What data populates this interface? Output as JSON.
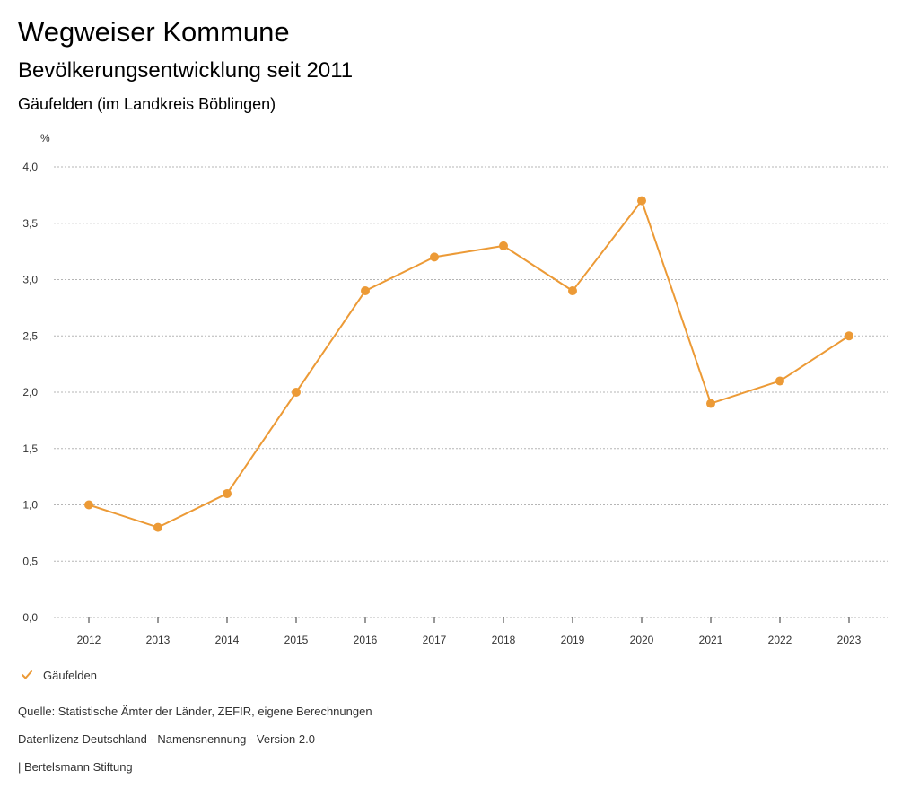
{
  "header": {
    "title": "Wegweiser Kommune",
    "subtitle": "Bevölkerungsentwicklung seit 2011",
    "region": "Gäufelden (im Landkreis Böblingen)"
  },
  "chart_data": {
    "type": "line",
    "title": "Bevölkerungsentwicklung seit 2011",
    "ylabel": "%",
    "xlabel": "",
    "ylim": [
      0,
      4
    ],
    "y_ticks": [
      "0,0",
      "0,5",
      "1,0",
      "1,5",
      "2,0",
      "2,5",
      "3,0",
      "3,5",
      "4,0"
    ],
    "categories": [
      "2012",
      "2013",
      "2014",
      "2015",
      "2016",
      "2017",
      "2018",
      "2019",
      "2020",
      "2021",
      "2022",
      "2023"
    ],
    "series": [
      {
        "name": "Gäufelden",
        "color": "#ec9a36",
        "values": [
          1.0,
          0.8,
          1.1,
          2.0,
          2.9,
          3.2,
          3.3,
          2.9,
          3.7,
          1.9,
          2.1,
          2.5
        ]
      }
    ],
    "grid": true,
    "legend": "bottom-left"
  },
  "legend": {
    "label": "Gäufelden",
    "icon": "check-icon"
  },
  "footer": {
    "source": "Quelle: Statistische Ämter der Länder, ZEFIR, eigene Berechnungen",
    "license": "Datenlizenz Deutschland - Namensnennung - Version 2.0",
    "publisher": "| Bertelsmann Stiftung"
  },
  "colors": {
    "series": "#ec9a36",
    "grid": "#b5b5b5",
    "axis": "#333333"
  }
}
